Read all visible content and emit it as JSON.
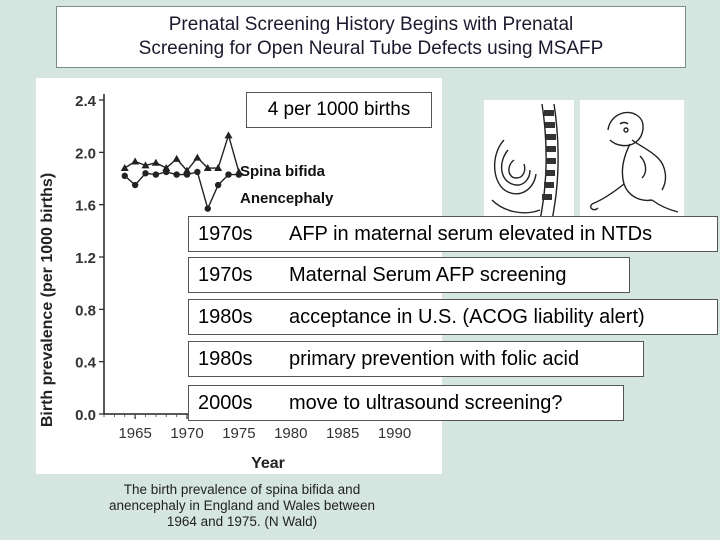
{
  "title": {
    "line1": "Prenatal Screening History Begins with Prenatal",
    "line2": "Screening for Open Neural Tube Defects using MSAFP"
  },
  "chart_data": {
    "type": "line",
    "xlabel": "Year",
    "ylabel": "Birth prevalence (per 1000 births)",
    "xlim": [
      1962,
      1994
    ],
    "ylim": [
      0,
      2.4
    ],
    "x_ticks": [
      "1965",
      "1970",
      "1975",
      "1980",
      "1985",
      "1990"
    ],
    "y_ticks": [
      "0.0",
      "0.4",
      "0.8",
      "1.2",
      "1.6",
      "2.0",
      "2.4"
    ],
    "x": [
      1964,
      1965,
      1966,
      1967,
      1968,
      1969,
      1970,
      1971,
      1972,
      1973,
      1974,
      1975
    ],
    "series": [
      {
        "name": "Spina bifida",
        "marker": "triangle",
        "values": [
          1.88,
          1.93,
          1.9,
          1.92,
          1.88,
          1.95,
          1.86,
          1.96,
          1.88,
          1.88,
          2.13,
          1.85
        ]
      },
      {
        "name": "Anencephaly",
        "marker": "circle",
        "values": [
          1.82,
          1.75,
          1.84,
          1.83,
          1.85,
          1.83,
          1.83,
          1.85,
          1.57,
          1.75,
          1.83,
          1.83
        ]
      }
    ]
  },
  "callout": "4 per 1000 births",
  "legend": {
    "spina": "Spina bifida",
    "anen": "Anencephaly"
  },
  "timeline": [
    {
      "decade": "1970s",
      "event": "AFP in maternal serum elevated in NTDs"
    },
    {
      "decade": "1970s",
      "event": "Maternal Serum AFP screening"
    },
    {
      "decade": "1980s",
      "event": "acceptance in U.S. (ACOG liability alert)"
    },
    {
      "decade": "1980s",
      "event": "primary prevention with folic acid"
    },
    {
      "decade": "2000s",
      "event": "move to ultrasound screening?"
    }
  ],
  "caption": {
    "line1": "The birth prevalence of spina bifida and",
    "line2": "anencephaly in England and Wales between",
    "line3": "1964 and 1975. (N Wald)"
  }
}
